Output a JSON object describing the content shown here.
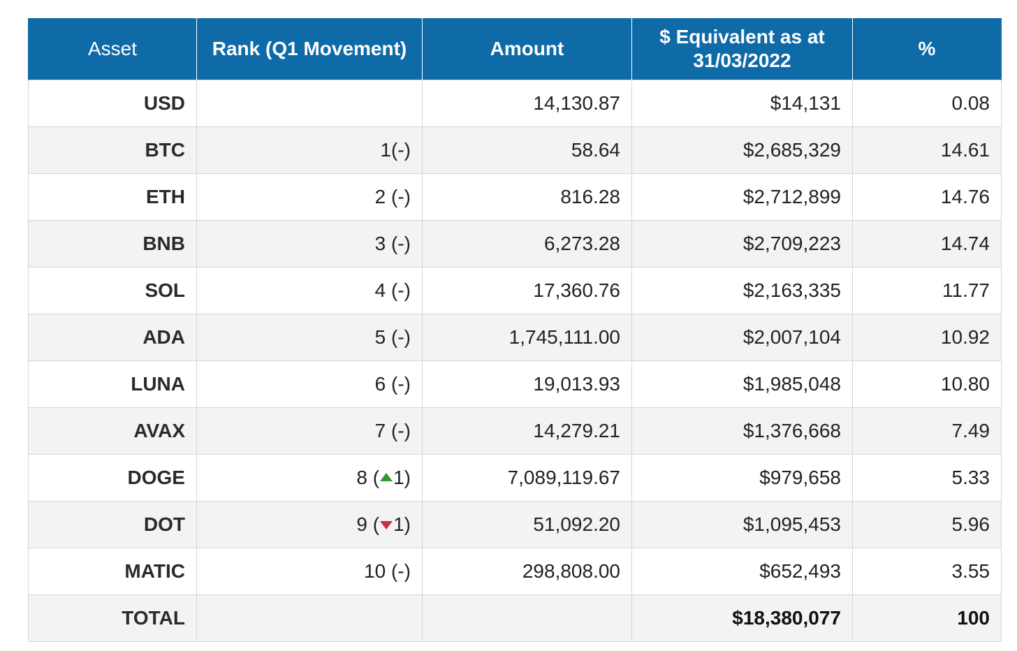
{
  "colors": {
    "header_bg": "#0f6aa8",
    "header_text": "#ffffff",
    "row_alt_bg": "#f3f3f3",
    "up_arrow": "#2e9a2e",
    "down_arrow": "#c8323c"
  },
  "table": {
    "headers": {
      "asset": "Asset",
      "rank": "Rank (Q1 Movement)",
      "amount": "Amount",
      "usd_equiv": "$ Equivalent as at 31/03/2022",
      "pct": "%"
    },
    "rows": [
      {
        "asset": "USD",
        "rank": "",
        "amount": "14,130.87",
        "usd": "$14,131",
        "pct": "0.08"
      },
      {
        "asset": "BTC",
        "rank": "1(-)",
        "amount": "58.64",
        "usd": "$2,685,329",
        "pct": "14.61"
      },
      {
        "asset": "ETH",
        "rank": "2 (-)",
        "amount": "816.28",
        "usd": "$2,712,899",
        "pct": "14.76"
      },
      {
        "asset": "BNB",
        "rank": "3 (-)",
        "amount": "6,273.28",
        "usd": "$2,709,223",
        "pct": "14.74"
      },
      {
        "asset": "SOL",
        "rank": "4 (-)",
        "amount": "17,360.76",
        "usd": "$2,163,335",
        "pct": "11.77"
      },
      {
        "asset": "ADA",
        "rank": "5 (-)",
        "amount": "1,745,111.00",
        "usd": "$2,007,104",
        "pct": "10.92"
      },
      {
        "asset": "LUNA",
        "rank": "6 (-)",
        "amount": "19,013.93",
        "usd": "$1,985,048",
        "pct": "10.80"
      },
      {
        "asset": "AVAX",
        "rank": "7 (-)",
        "amount": "14,279.21",
        "usd": "$1,376,668",
        "pct": "7.49"
      },
      {
        "asset": "DOGE",
        "rank_prefix": "8 (",
        "rank_move": "up",
        "rank_move_icon": "triangle-up-icon",
        "rank_delta": "1",
        "rank_suffix": ")",
        "amount": "7,089,119.67",
        "usd": "$979,658",
        "pct": "5.33"
      },
      {
        "asset": "DOT",
        "rank_prefix": "9 (",
        "rank_move": "down",
        "rank_move_icon": "triangle-down-icon",
        "rank_delta": "1",
        "rank_suffix": ")",
        "amount": "51,092.20",
        "usd": "$1,095,453",
        "pct": "5.96"
      },
      {
        "asset": "MATIC",
        "rank": "10 (-)",
        "amount": "298,808.00",
        "usd": "$652,493",
        "pct": "3.55"
      }
    ],
    "total": {
      "label": "TOTAL",
      "rank": "",
      "amount": "",
      "usd": "$18,380,077",
      "pct": "100"
    }
  }
}
